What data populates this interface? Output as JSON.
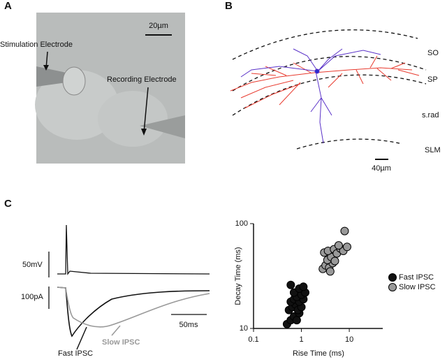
{
  "panels": {
    "A": {
      "label": "A",
      "scale_bar": "20µm",
      "annotations": [
        "Stimulation Electrode",
        "Recording Electrode"
      ]
    },
    "B": {
      "label": "B",
      "layers": [
        "SO",
        "SP",
        "s.rad",
        "SLM"
      ],
      "scale_bar": "40µm"
    },
    "C": {
      "label": "C",
      "voltage_scale": "50mV",
      "current_scale": "100pA",
      "time_scale": "50ms",
      "trace_labels": [
        "Fast IPSC",
        "Slow IPSC"
      ]
    }
  },
  "chart_data": {
    "type": "scatter",
    "xlabel": "Rise Time (ms)",
    "ylabel": "Decay Time (ms)",
    "log_x": true,
    "log_y": true,
    "xlim": [
      0.1,
      50
    ],
    "ylim": [
      10,
      100
    ],
    "xticks": [
      0.1,
      1,
      10
    ],
    "yticks": [
      10,
      100
    ],
    "legend": "right",
    "series": [
      {
        "name": "Fast IPSC",
        "color": "#111111",
        "x": [
          0.5,
          0.6,
          0.7,
          0.8,
          0.9,
          0.55,
          0.65,
          0.75,
          0.85,
          1.0,
          0.6,
          0.7,
          0.9,
          1.1,
          0.8,
          1.0,
          0.7,
          1.2,
          0.9,
          0.6,
          1.1
        ],
        "values": [
          11,
          12,
          13,
          12,
          14,
          15,
          16,
          17,
          15,
          16,
          18,
          19,
          18,
          19,
          20,
          21,
          22,
          22,
          24,
          26,
          25
        ]
      },
      {
        "name": "Slow IPSC",
        "color": "#999999",
        "x": [
          2.8,
          3.2,
          3.8,
          4.5,
          3.5,
          4.2,
          5.0,
          3.0,
          3.6,
          4.8,
          5.5,
          6.5,
          7.5,
          9.0,
          8.0,
          6.0,
          4.0
        ],
        "values": [
          37,
          40,
          38,
          42,
          45,
          48,
          44,
          53,
          55,
          57,
          52,
          58,
          55,
          60,
          85,
          62,
          35
        ]
      }
    ]
  }
}
